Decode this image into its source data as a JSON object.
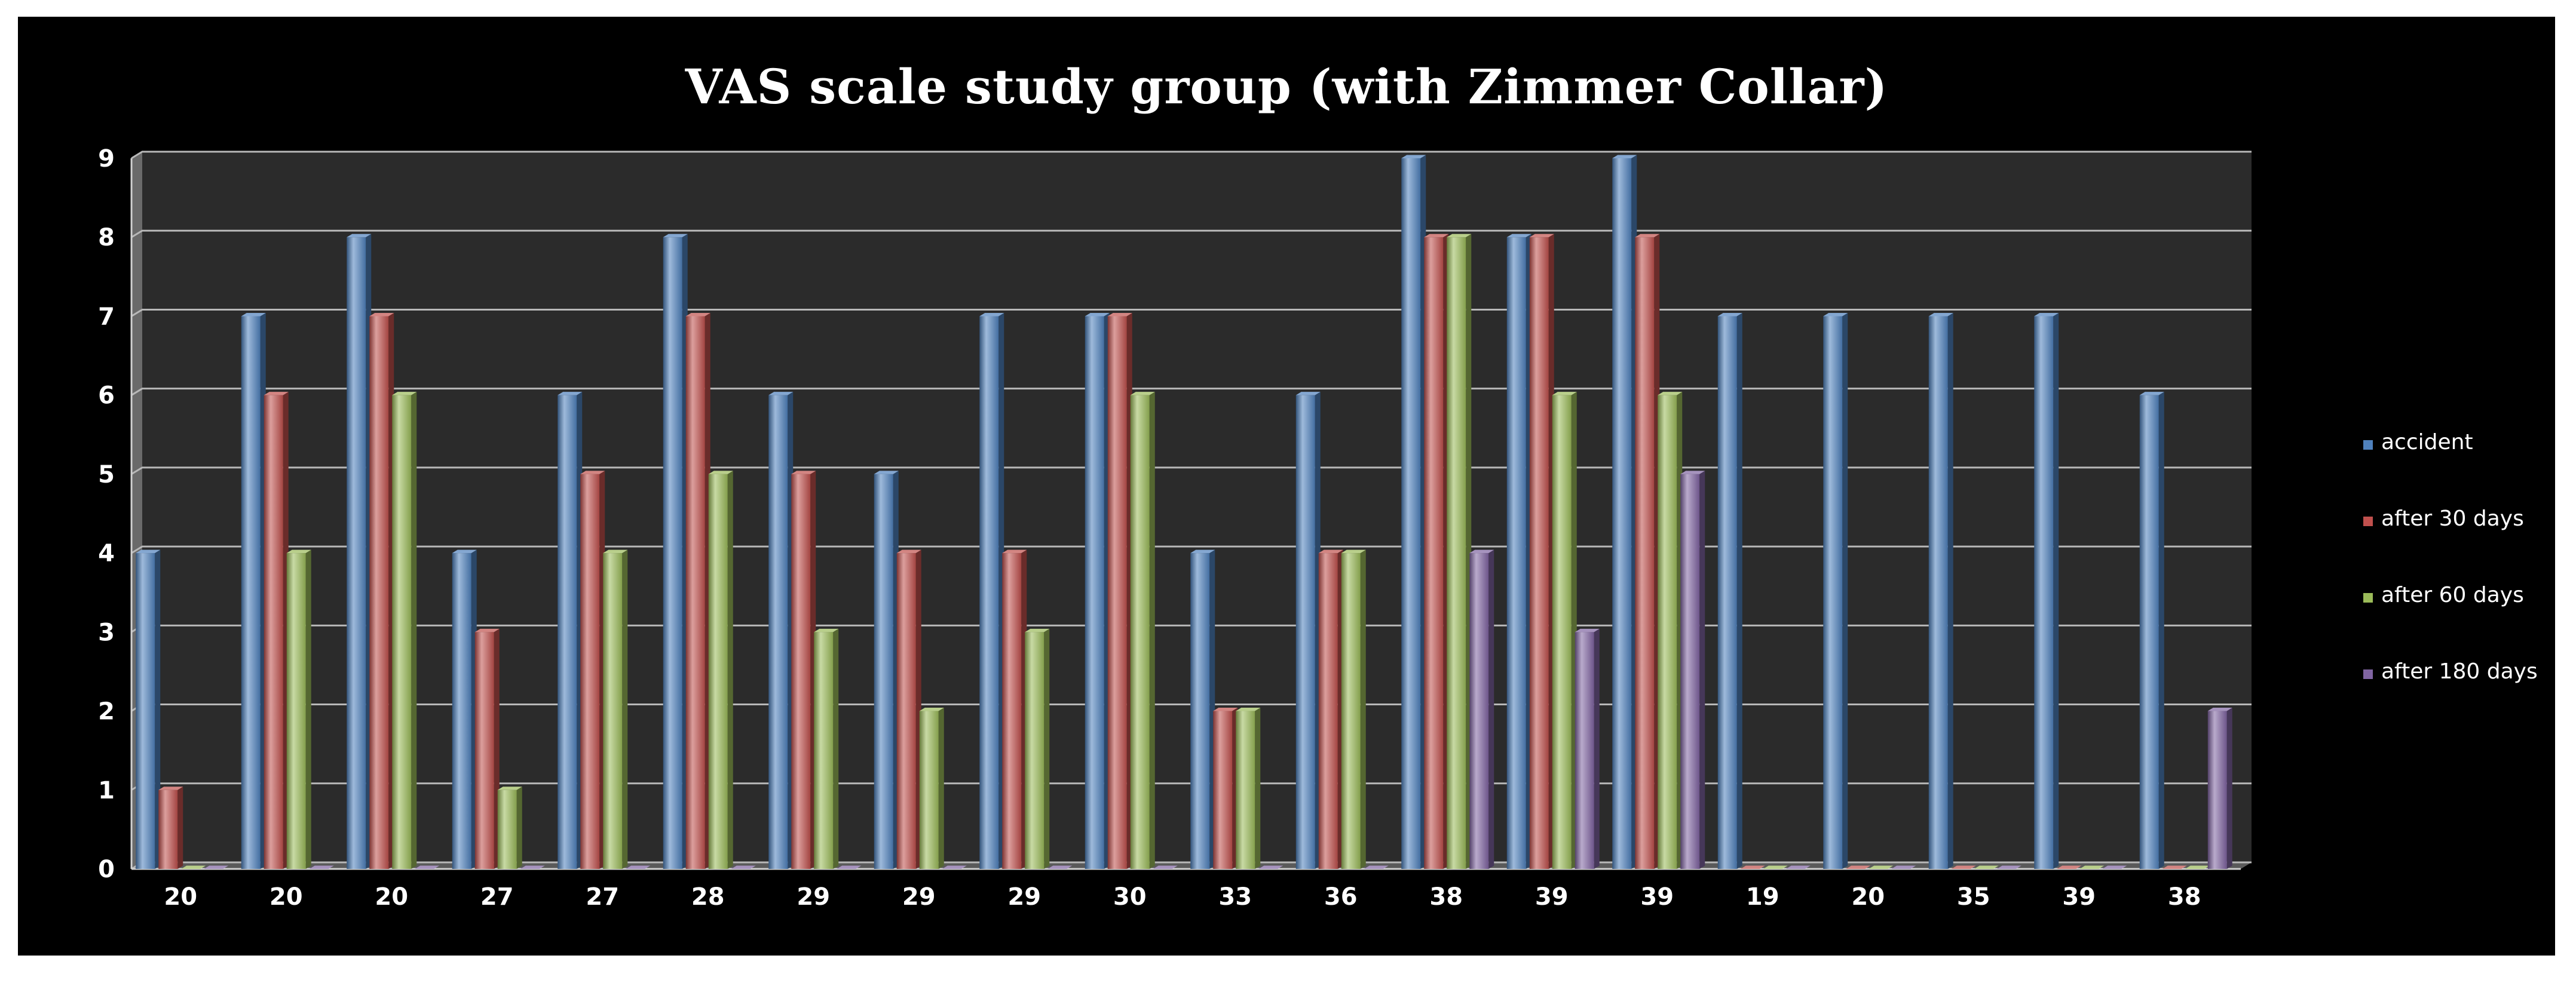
{
  "chart_data": {
    "type": "bar",
    "title": "VAS scale study group (with Zimmer Collar)",
    "xlabel": "",
    "ylabel": "",
    "ylim": [
      0,
      9
    ],
    "yticks": [
      0,
      1,
      2,
      3,
      4,
      5,
      6,
      7,
      8,
      9
    ],
    "categories": [
      "20",
      "20",
      "20",
      "27",
      "27",
      "28",
      "29",
      "29",
      "29",
      "30",
      "33",
      "36",
      "38",
      "39",
      "39",
      "19",
      "20",
      "35",
      "39",
      "38"
    ],
    "series": [
      {
        "name": "accident",
        "color": "#4f81bd",
        "values": [
          4,
          7,
          8,
          4,
          6,
          8,
          6,
          5,
          7,
          7,
          4,
          6,
          9,
          8,
          9,
          7,
          7,
          7,
          7,
          6
        ]
      },
      {
        "name": "after 30 days",
        "color": "#c0504d",
        "values": [
          1,
          6,
          7,
          3,
          5,
          7,
          5,
          4,
          4,
          7,
          2,
          4,
          8,
          8,
          8,
          0,
          0,
          0,
          0,
          0
        ]
      },
      {
        "name": "after 60 days",
        "color": "#9bbb59",
        "values": [
          0,
          4,
          6,
          1,
          4,
          5,
          3,
          2,
          3,
          6,
          2,
          4,
          8,
          6,
          6,
          0,
          0,
          0,
          0,
          0
        ]
      },
      {
        "name": "after 180 days",
        "color": "#8064a2",
        "values": [
          0,
          0,
          0,
          0,
          0,
          0,
          0,
          0,
          0,
          0,
          0,
          0,
          4,
          3,
          5,
          0,
          0,
          0,
          0,
          2
        ]
      }
    ],
    "grid": true,
    "legend_position": "right",
    "style": "3d-clustered-column"
  }
}
